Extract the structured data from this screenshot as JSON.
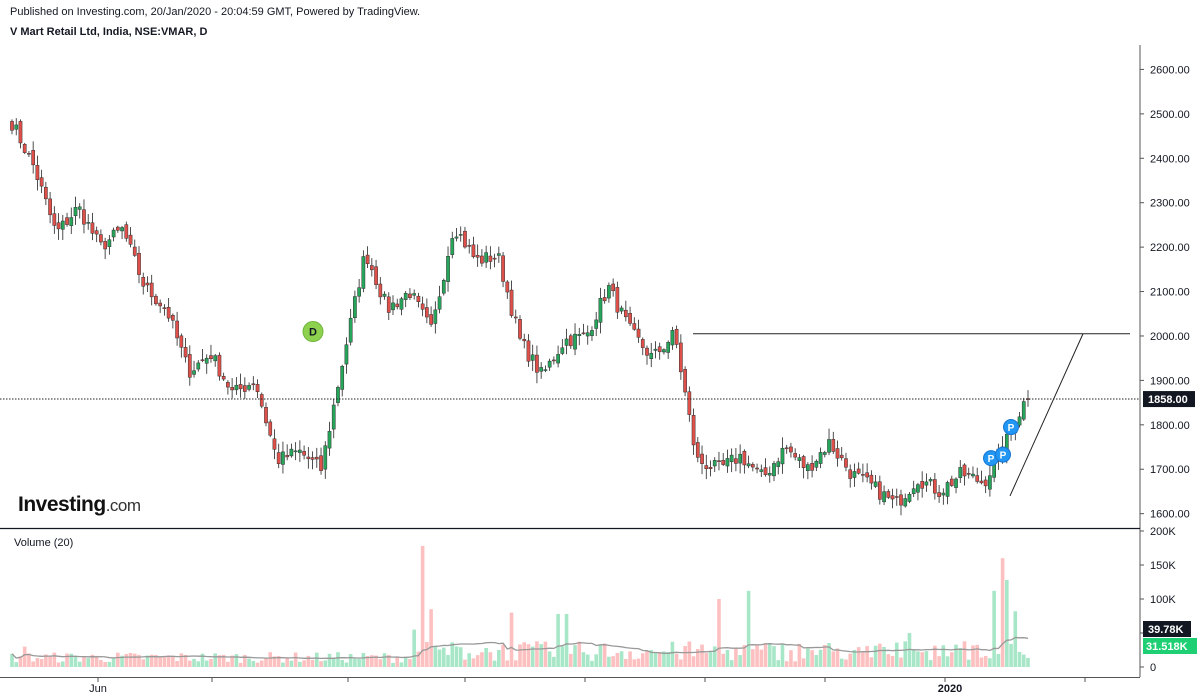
{
  "header": {
    "published": "Published on Investing.com, 20/Jan/2020 - 20:04:59 GMT, Powered by TradingView.",
    "symbol": "V Mart Retail Ltd, India, NSE:VMAR, D"
  },
  "logo": {
    "brand": "Investing",
    "domain": ".com"
  },
  "volume_label": "Volume (20)",
  "colors": {
    "up": "#26a65b",
    "down": "#e0504a",
    "up_vol": "#a8e6c8",
    "down_vol": "#fcc0c0",
    "marker_d": "#8ed14e",
    "marker_p": "#2196f3"
  },
  "markers": {
    "d": "D",
    "p": "P"
  },
  "chart_data": [
    {
      "type": "candlestick",
      "title": "V Mart Retail Ltd, India, NSE:VMAR, D",
      "x_tick_labels": [
        "Jun",
        "2020"
      ],
      "y_tick_labels": [
        "2600.00",
        "2500.00",
        "2400.00",
        "2300.00",
        "2200.00",
        "2100.00",
        "2000.00",
        "1900.00",
        "1800.00",
        "1700.00",
        "1600.00"
      ],
      "ylim": [
        1570,
        2655
      ],
      "last_price": 1858,
      "last_price_label": "1858.00",
      "resistance_level": 2005,
      "pivots": [
        2480,
        2380,
        2230,
        2290,
        2200,
        2240,
        2110,
        2060,
        1920,
        1960,
        1870,
        1900,
        1720,
        1740,
        1700,
        1950,
        2190,
        2060,
        2100,
        2010,
        2250,
        2170,
        2180,
        1990,
        1910,
        1990,
        2000,
        2110,
        2010,
        1950,
        2005,
        1720,
        1700,
        1730,
        1680,
        1750,
        1700,
        1760,
        1690,
        1660,
        1620,
        1680,
        1650,
        1690,
        1670,
        1760,
        1870
      ],
      "markers": [
        {
          "label": "D",
          "price": 2010
        },
        {
          "label": "P",
          "price": 1725
        },
        {
          "label": "P",
          "price": 1733
        },
        {
          "label": "P",
          "price": 1795
        }
      ]
    },
    {
      "type": "bar",
      "title": "Volume (20)",
      "y_tick_labels": [
        "200K",
        "150K",
        "100K",
        "50K",
        "0"
      ],
      "ylim": [
        0,
        200000
      ],
      "last_value_label": "39.78K",
      "ma_value_label": "31.518K",
      "spikes": [
        {
          "bar": 3,
          "value": 30000
        },
        {
          "bar": 95,
          "value": 55000
        },
        {
          "bar": 97,
          "value": 178000
        },
        {
          "bar": 99,
          "value": 85000
        },
        {
          "bar": 118,
          "value": 80000
        },
        {
          "bar": 129,
          "value": 78000
        },
        {
          "bar": 131,
          "value": 78000
        },
        {
          "bar": 167,
          "value": 100000
        },
        {
          "bar": 174,
          "value": 112000
        },
        {
          "bar": 212,
          "value": 50000
        },
        {
          "bar": 232,
          "value": 112000
        },
        {
          "bar": 234,
          "value": 160000
        },
        {
          "bar": 235,
          "value": 128000
        },
        {
          "bar": 237,
          "value": 82000
        }
      ]
    }
  ]
}
